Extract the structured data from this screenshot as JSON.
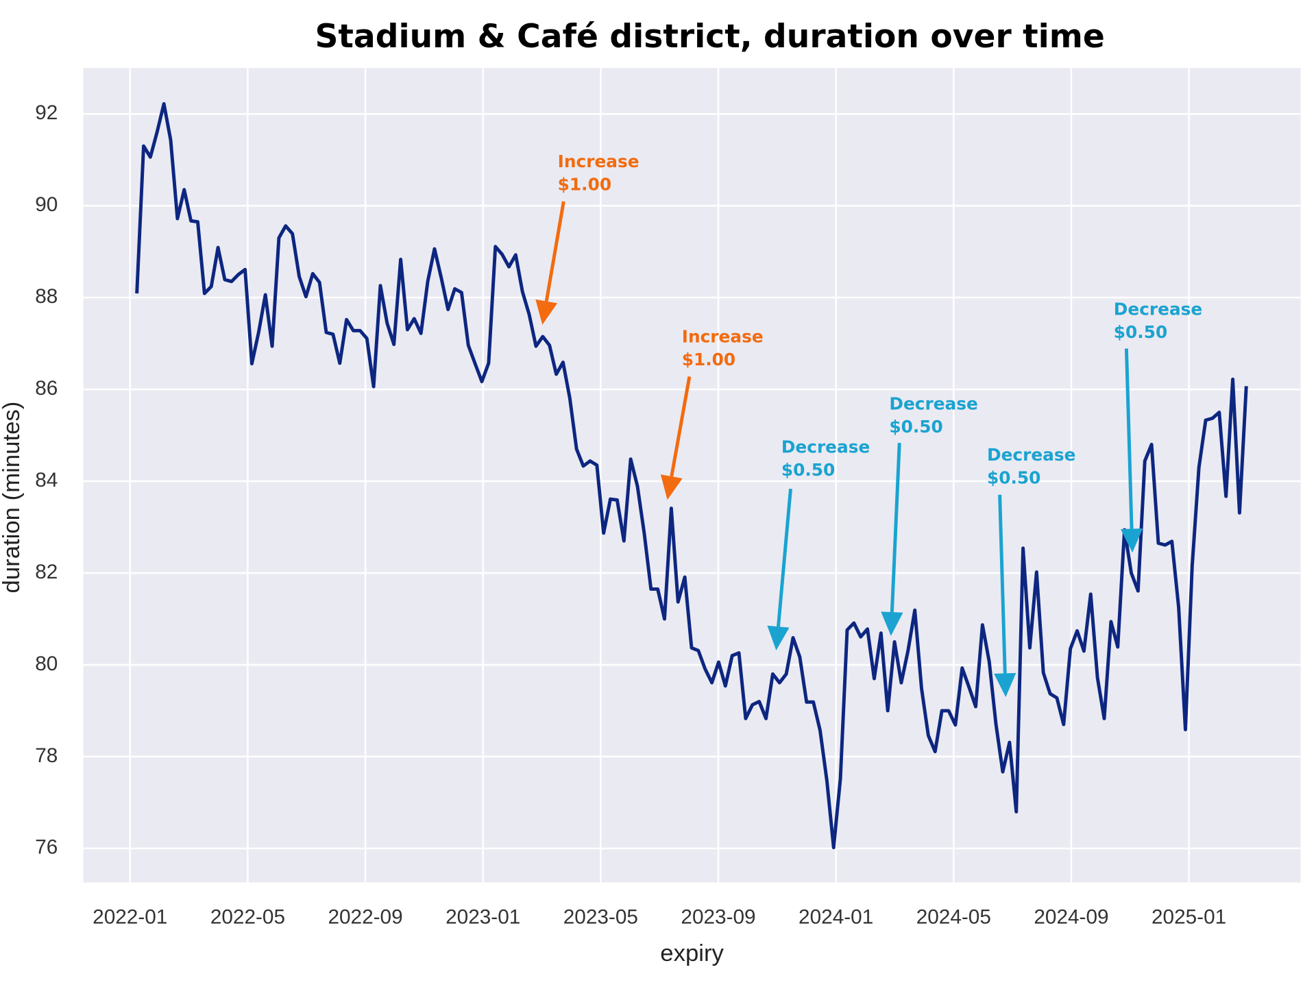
{
  "chart_data": {
    "type": "line",
    "title": "Stadium & Café district, duration over time",
    "x_label": "expiry",
    "y_label": "duration (minutes)",
    "xlim": [
      -1.59,
      39.8
    ],
    "ylim": [
      75.26,
      93.0
    ],
    "xticks": [
      {
        "value": 0,
        "label": "2022-01"
      },
      {
        "value": 4,
        "label": "2022-05"
      },
      {
        "value": 8,
        "label": "2022-09"
      },
      {
        "value": 12,
        "label": "2023-01"
      },
      {
        "value": 16,
        "label": "2023-05"
      },
      {
        "value": 20,
        "label": "2023-09"
      },
      {
        "value": 24,
        "label": "2024-01"
      },
      {
        "value": 28,
        "label": "2024-05"
      },
      {
        "value": 32,
        "label": "2024-09"
      },
      {
        "value": 36,
        "label": "2025-01"
      }
    ],
    "yticks": [
      76,
      78,
      80,
      82,
      84,
      86,
      88,
      90,
      92
    ],
    "grid": true,
    "x": [
      0.23,
      0.46,
      0.69,
      0.92,
      1.15,
      1.38,
      1.61,
      1.84,
      2.07,
      2.3,
      2.53,
      2.76,
      2.99,
      3.22,
      3.45,
      3.68,
      3.91,
      4.14,
      4.37,
      4.6,
      4.83,
      5.06,
      5.29,
      5.52,
      5.75,
      5.98,
      6.21,
      6.44,
      6.67,
      6.9,
      7.13,
      7.36,
      7.59,
      7.82,
      8.05,
      8.28,
      8.51,
      8.74,
      8.97,
      9.2,
      9.43,
      9.66,
      9.89,
      10.12,
      10.35,
      10.58,
      10.81,
      11.04,
      11.27,
      11.5,
      11.73,
      11.96,
      12.19,
      12.42,
      12.65,
      12.88,
      13.11,
      13.34,
      13.57,
      13.8,
      14.03,
      14.26,
      14.49,
      14.72,
      14.95,
      15.18,
      15.41,
      15.64,
      15.87,
      16.1,
      16.33,
      16.56,
      16.79,
      17.02,
      17.25,
      17.48,
      17.71,
      17.94,
      18.17,
      18.4,
      18.63,
      18.86,
      19.09,
      19.32,
      19.55,
      19.78,
      20.01,
      20.24,
      20.47,
      20.7,
      20.93,
      21.16,
      21.39,
      21.62,
      21.85,
      22.08,
      22.31,
      22.54,
      22.77,
      23,
      23.23,
      23.46,
      23.69,
      23.92,
      24.15,
      24.38,
      24.61,
      24.84,
      25.07,
      25.3,
      25.53,
      25.76,
      25.99,
      26.22,
      26.45,
      26.68,
      26.91,
      27.14,
      27.37,
      27.6,
      27.83,
      28.06,
      28.29,
      28.52,
      28.75,
      28.98,
      29.21,
      29.44,
      29.67,
      29.9,
      30.13,
      30.36,
      30.59,
      30.82,
      31.05,
      31.28,
      31.51,
      31.74,
      31.97,
      32.2,
      32.43,
      32.66,
      32.89,
      33.12,
      33.35,
      33.58,
      33.81,
      34.04,
      34.27,
      34.5,
      34.73,
      34.96,
      35.19,
      35.42,
      35.65,
      35.88,
      36.11,
      36.34,
      36.57,
      36.8,
      37.03,
      37.26,
      37.49,
      37.72,
      37.95
    ],
    "series": [
      {
        "color": "#0d2680",
        "values": [
          88.09,
          91.3,
          91.06,
          91.61,
          92.22,
          91.43,
          89.72,
          90.35,
          89.67,
          89.65,
          88.09,
          88.24,
          89.09,
          88.39,
          88.35,
          88.5,
          88.61,
          86.56,
          87.24,
          88.06,
          86.94,
          89.3,
          89.56,
          89.39,
          88.46,
          88.02,
          88.52,
          88.33,
          87.24,
          87.2,
          86.57,
          87.52,
          87.28,
          87.28,
          87.11,
          86.06,
          88.26,
          87.44,
          86.98,
          88.83,
          87.3,
          87.54,
          87.22,
          88.35,
          89.06,
          88.43,
          87.74,
          88.19,
          88.11,
          86.96,
          86.56,
          86.17,
          86.57,
          89.11,
          88.94,
          88.67,
          88.93,
          88.13,
          87.63,
          86.94,
          87.15,
          86.96,
          86.33,
          86.59,
          85.81,
          84.7,
          84.33,
          84.44,
          84.35,
          82.87,
          83.61,
          83.59,
          82.7,
          84.48,
          83.89,
          82.87,
          81.65,
          81.65,
          81.0,
          83.41,
          81.37,
          81.91,
          80.37,
          80.31,
          79.91,
          79.61,
          80.06,
          79.54,
          80.2,
          80.26,
          78.83,
          79.13,
          79.2,
          78.83,
          79.8,
          79.61,
          79.8,
          80.59,
          80.17,
          79.19,
          79.19,
          78.57,
          77.48,
          76.02,
          77.52,
          80.76,
          80.91,
          80.61,
          80.78,
          79.7,
          80.69,
          79.0,
          80.5,
          79.61,
          80.31,
          81.19,
          79.48,
          78.46,
          78.11,
          79.0,
          79.0,
          78.69,
          79.93,
          79.52,
          79.09,
          80.87,
          80.07,
          78.7,
          77.67,
          78.31,
          76.8,
          82.54,
          80.37,
          82.02,
          79.83,
          79.37,
          79.28,
          78.7,
          80.35,
          80.74,
          80.3,
          81.54,
          79.72,
          78.83,
          80.94,
          80.39,
          82.94,
          82.0,
          81.61,
          84.44,
          84.8,
          82.65,
          82.61,
          82.69,
          81.26,
          78.59,
          82.15,
          84.3,
          85.33,
          85.37,
          85.5,
          83.67,
          86.22,
          83.31,
          86.07
        ]
      }
    ],
    "annotations": [
      {
        "lines": [
          "Increase",
          "$1.00"
        ],
        "color": "#f26b0f"
      },
      {
        "lines": [
          "Increase",
          "$1.00"
        ],
        "color": "#f26b0f"
      },
      {
        "lines": [
          "Decrease",
          "$0.50"
        ],
        "color": "#1aa3d0"
      },
      {
        "lines": [
          "Decrease",
          "$0.50"
        ],
        "color": "#1aa3d0"
      },
      {
        "lines": [
          "Decrease",
          "$0.50"
        ],
        "color": "#1aa3d0"
      },
      {
        "lines": [
          "Decrease",
          "$0.50"
        ],
        "color": "#1aa3d0"
      }
    ]
  }
}
